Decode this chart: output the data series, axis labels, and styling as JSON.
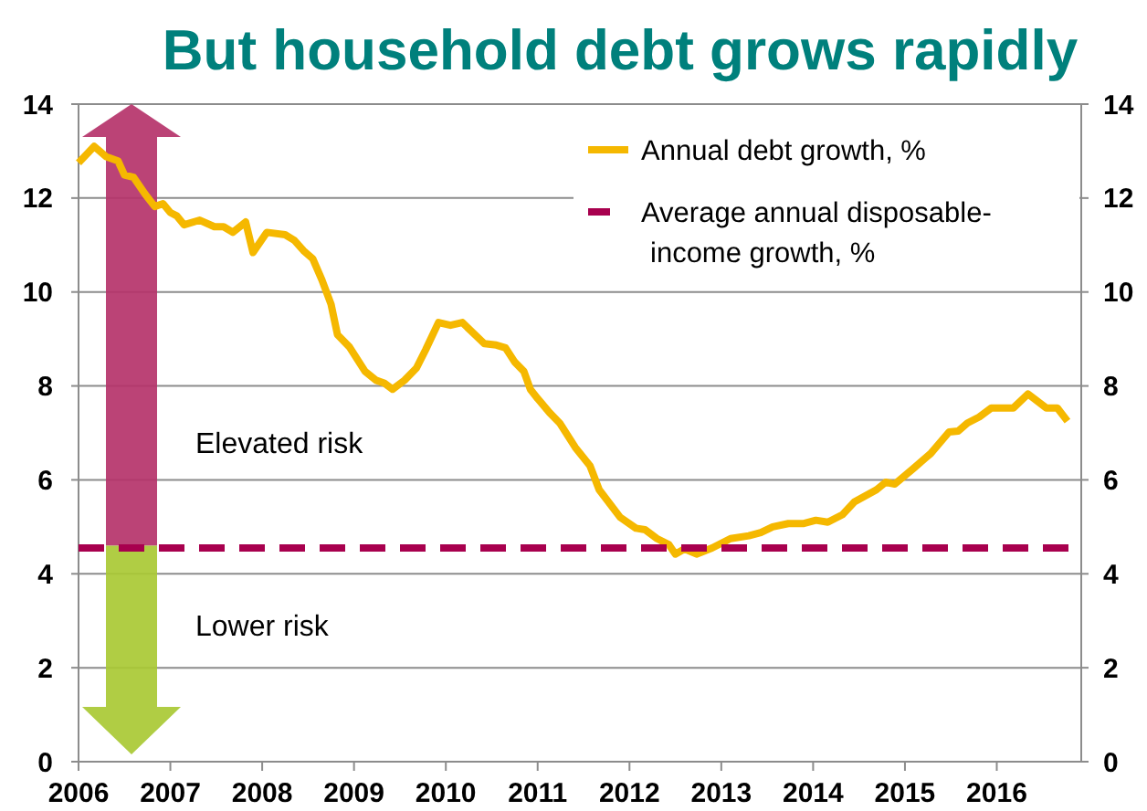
{
  "chart_data": {
    "type": "line",
    "title": "But household debt grows rapidly",
    "xlim": [
      2006,
      2016.92
    ],
    "xticks": [
      2006,
      2007,
      2008,
      2009,
      2010,
      2011,
      2012,
      2013,
      2014,
      2015,
      2016
    ],
    "ylim": [
      0,
      14
    ],
    "yticks": [
      0,
      2,
      4,
      6,
      8,
      10,
      12,
      14
    ],
    "y2lim": [
      0,
      14
    ],
    "y2ticks": [
      0,
      2,
      4,
      6,
      8,
      10,
      12,
      14
    ],
    "grid": "y",
    "legend": "top right",
    "annotations": [
      "Elevated risk",
      "Lower risk"
    ],
    "series": [
      {
        "name": "Annual debt growth, %",
        "color": "#f5b800",
        "line_style": "solid",
        "x": [
          2006.0,
          2006.17,
          2006.3,
          2006.43,
          2006.5,
          2006.6,
          2006.73,
          2006.83,
          2006.92,
          2007.0,
          2007.07,
          2007.15,
          2007.32,
          2007.48,
          2007.58,
          2007.68,
          2007.82,
          2007.9,
          2008.05,
          2008.25,
          2008.35,
          2008.45,
          2008.55,
          2008.65,
          2008.75,
          2008.82,
          2008.95,
          2009.12,
          2009.24,
          2009.33,
          2009.42,
          2009.55,
          2009.68,
          2009.78,
          2009.92,
          2010.05,
          2010.18,
          2010.28,
          2010.42,
          2010.55,
          2010.65,
          2010.75,
          2010.85,
          2010.92,
          2011.0,
          2011.13,
          2011.24,
          2011.41,
          2011.57,
          2011.67,
          2011.9,
          2012.07,
          2012.17,
          2012.3,
          2012.43,
          2012.5,
          2012.6,
          2012.73,
          2012.9,
          2013.1,
          2013.3,
          2013.43,
          2013.56,
          2013.73,
          2013.89,
          2014.03,
          2014.16,
          2014.32,
          2014.45,
          2014.69,
          2014.79,
          2014.89,
          2015.09,
          2015.28,
          2015.48,
          2015.58,
          2015.68,
          2015.81,
          2015.94,
          2016.18,
          2016.34,
          2016.54,
          2016.66,
          2016.77
        ],
        "values": [
          12.75,
          13.1,
          12.88,
          12.79,
          12.49,
          12.44,
          12.07,
          11.82,
          11.88,
          11.69,
          11.62,
          11.43,
          11.53,
          11.39,
          11.39,
          11.27,
          11.49,
          10.84,
          11.27,
          11.22,
          11.1,
          10.88,
          10.71,
          10.26,
          9.74,
          9.09,
          8.83,
          8.31,
          8.12,
          8.06,
          7.93,
          8.12,
          8.38,
          8.77,
          9.35,
          9.29,
          9.35,
          9.16,
          8.9,
          8.87,
          8.81,
          8.51,
          8.31,
          7.93,
          7.73,
          7.43,
          7.21,
          6.69,
          6.3,
          5.79,
          5.2,
          4.97,
          4.94,
          4.75,
          4.62,
          4.42,
          4.53,
          4.42,
          4.55,
          4.75,
          4.81,
          4.88,
          5.0,
          5.07,
          5.07,
          5.14,
          5.1,
          5.26,
          5.53,
          5.79,
          5.95,
          5.91,
          6.24,
          6.56,
          7.02,
          7.04,
          7.21,
          7.34,
          7.53,
          7.53,
          7.83,
          7.53,
          7.53,
          7.25
        ]
      },
      {
        "name": "Average annual disposable-income growth, %",
        "color": "#a8004e",
        "line_style": "dashed",
        "x": [
          2006.0,
          2016.83
        ],
        "values": [
          4.55,
          4.55
        ]
      }
    ]
  }
}
